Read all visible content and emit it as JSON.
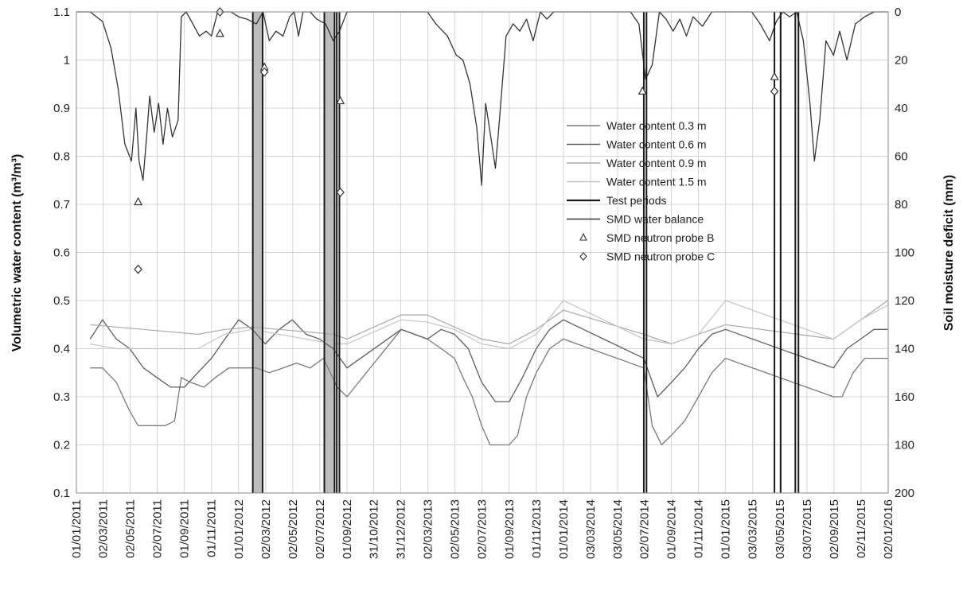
{
  "chart_data": {
    "type": "line",
    "title": "",
    "ylabel": "Volumetric water content (m³/m³)",
    "y2label": "Soil moisture deficit (mm)",
    "xlabel": "",
    "ylim": [
      0.1,
      1.1
    ],
    "y2lim": [
      0,
      200
    ],
    "y2_inverted": true,
    "yticks": [
      "0.1",
      "0.2",
      "0.3",
      "0.4",
      "0.5",
      "0.6",
      "0.7",
      "0.8",
      "0.9",
      "1",
      "1.1"
    ],
    "y2ticks": [
      "0",
      "20",
      "40",
      "60",
      "80",
      "100",
      "120",
      "140",
      "160",
      "180",
      "200"
    ],
    "x_ticks": [
      "01/01/2011",
      "02/03/2011",
      "02/05/2011",
      "02/07/2011",
      "01/09/2011",
      "01/11/2011",
      "01/01/2012",
      "02/03/2012",
      "02/05/2012",
      "02/07/2012",
      "01/09/2012",
      "31/10/2012",
      "31/12/2012",
      "02/03/2013",
      "02/05/2013",
      "02/07/2013",
      "01/09/2013",
      "01/11/2013",
      "01/01/2014",
      "03/03/2014",
      "03/05/2014",
      "02/07/2014",
      "01/09/2014",
      "01/11/2014",
      "01/01/2015",
      "03/03/2015",
      "03/05/2015",
      "03/07/2015",
      "02/09/2015",
      "02/11/2015",
      "02/01/2016"
    ],
    "grid": true,
    "legend_position": "center-right",
    "legend": [
      "Water content 0.3 m",
      "Water content 0.6 m",
      "Water content 0.9 m",
      "Water content 1.5 m",
      "Test periods",
      "SMD water balance",
      "SMD neutron probe B",
      "SMD neutron probe C"
    ],
    "colors": {
      "wc03": "#7a7a7a",
      "wc06": "#5e5e5e",
      "wc09": "#a8a8a8",
      "wc15": "#c4c4c4",
      "test": "#1a1a1a",
      "smd": "#333333",
      "probe": "#333333",
      "shade": "#bdbdbd"
    },
    "test_periods": [
      {
        "start": "2012-02-02",
        "end": "2012-02-24",
        "shaded": true
      },
      {
        "start": "2012-07-12",
        "end": "2012-08-04",
        "shaded": true
      },
      {
        "start": "2012-08-09",
        "end": "2012-08-15",
        "shaded": false
      },
      {
        "start": "2014-07-01",
        "end": "2014-07-07",
        "shaded": false
      },
      {
        "start": "2015-04-21",
        "end": "2015-05-05",
        "shaded": false
      },
      {
        "start": "2015-06-07",
        "end": "2015-06-14",
        "shaded": false
      }
    ],
    "series": [
      {
        "name": "SMD water balance",
        "axis": "y2",
        "key": "smd",
        "x": [
          "2011-01-01",
          "2011-02-01",
          "2011-03-01",
          "2011-03-20",
          "2011-04-05",
          "2011-04-20",
          "2011-05-05",
          "2011-05-15",
          "2011-05-22",
          "2011-05-31",
          "2011-06-08",
          "2011-06-15",
          "2011-06-25",
          "2011-07-05",
          "2011-07-15",
          "2011-07-25",
          "2011-08-05",
          "2011-08-18",
          "2011-08-25",
          "2011-09-05",
          "2011-09-20",
          "2011-10-05",
          "2011-10-20",
          "2011-11-01",
          "2011-11-15",
          "2011-12-01",
          "2011-12-15",
          "2012-01-01",
          "2012-01-20",
          "2012-02-10",
          "2012-02-25",
          "2012-03-10",
          "2012-03-25",
          "2012-04-10",
          "2012-04-25",
          "2012-05-05",
          "2012-05-15",
          "2012-05-25",
          "2012-06-10",
          "2012-06-25",
          "2012-07-15",
          "2012-08-01",
          "2012-08-15",
          "2012-09-01",
          "2012-10-01",
          "2013-01-01",
          "2013-03-01",
          "2013-03-20",
          "2013-04-15",
          "2013-05-05",
          "2013-05-20",
          "2013-06-05",
          "2013-06-20",
          "2013-07-01",
          "2013-07-10",
          "2013-07-20",
          "2013-08-01",
          "2013-08-10",
          "2013-08-25",
          "2013-09-10",
          "2013-09-25",
          "2013-10-10",
          "2013-10-25",
          "2013-11-10",
          "2013-11-25",
          "2013-12-10",
          "2014-01-01",
          "2014-03-01",
          "2014-05-01",
          "2014-06-01",
          "2014-06-20",
          "2014-07-05",
          "2014-07-20",
          "2014-08-05",
          "2014-08-20",
          "2014-09-05",
          "2014-09-20",
          "2014-10-05",
          "2014-10-20",
          "2014-11-10",
          "2014-12-01",
          "2015-01-01",
          "2015-02-01",
          "2015-03-01",
          "2015-03-20",
          "2015-04-10",
          "2015-04-25",
          "2015-05-10",
          "2015-05-25",
          "2015-06-10",
          "2015-06-25",
          "2015-07-10",
          "2015-07-20",
          "2015-08-01",
          "2015-08-15",
          "2015-09-01",
          "2015-09-15",
          "2015-10-01",
          "2015-10-20",
          "2015-11-10",
          "2015-12-01",
          "2016-01-01"
        ],
        "y": [
          0,
          0,
          4,
          15,
          32,
          55,
          62,
          40,
          62,
          70,
          52,
          35,
          50,
          38,
          55,
          40,
          52,
          45,
          2,
          0,
          5,
          10,
          8,
          10,
          0,
          0,
          0,
          2,
          3,
          5,
          0,
          12,
          8,
          10,
          2,
          0,
          10,
          0,
          0,
          3,
          5,
          12,
          8,
          0,
          0,
          0,
          0,
          5,
          10,
          18,
          20,
          30,
          48,
          72,
          38,
          50,
          65,
          45,
          10,
          5,
          8,
          3,
          12,
          0,
          3,
          0,
          0,
          0,
          0,
          0,
          5,
          28,
          22,
          0,
          3,
          8,
          3,
          10,
          2,
          6,
          0,
          0,
          0,
          0,
          5,
          12,
          4,
          0,
          2,
          0,
          12,
          38,
          62,
          45,
          12,
          18,
          8,
          20,
          5,
          2,
          0,
          0
        ]
      },
      {
        "name": "Water content 0.3 m",
        "axis": "y1",
        "key": "wc03",
        "x": [
          "2011-02-01",
          "2011-03-01",
          "2011-04-01",
          "2011-05-01",
          "2011-05-20",
          "2011-06-10",
          "2011-07-01",
          "2011-07-20",
          "2011-08-10",
          "2011-08-25",
          "2011-09-15",
          "2011-10-15",
          "2011-11-10",
          "2011-12-10",
          "2012-01-10",
          "2012-02-10",
          "2012-03-10",
          "2012-04-10",
          "2012-05-10",
          "2012-06-10",
          "2012-07-10",
          "2012-08-10",
          "2012-09-01",
          "2013-01-01",
          "2013-03-01",
          "2013-04-01",
          "2013-05-01",
          "2013-05-20",
          "2013-06-10",
          "2013-07-01",
          "2013-07-20",
          "2013-08-10",
          "2013-09-01",
          "2013-09-20",
          "2013-10-10",
          "2013-11-01",
          "2013-12-01",
          "2014-01-01",
          "2014-07-01",
          "2014-07-20",
          "2014-08-10",
          "2014-09-01",
          "2014-10-01",
          "2014-11-01",
          "2014-12-01",
          "2015-01-01",
          "2015-09-01",
          "2015-09-20",
          "2015-10-15",
          "2015-11-10",
          "2015-12-10",
          "2016-01-01"
        ],
        "y": [
          0.36,
          0.36,
          0.33,
          0.27,
          0.24,
          0.24,
          0.24,
          0.24,
          0.25,
          0.34,
          0.33,
          0.32,
          0.34,
          0.36,
          0.36,
          0.36,
          0.35,
          0.36,
          0.37,
          0.36,
          0.38,
          0.32,
          0.3,
          0.44,
          0.42,
          0.4,
          0.38,
          0.34,
          0.3,
          0.24,
          0.2,
          0.2,
          0.2,
          0.22,
          0.3,
          0.35,
          0.4,
          0.42,
          0.36,
          0.24,
          0.2,
          0.22,
          0.25,
          0.3,
          0.35,
          0.38,
          0.3,
          0.3,
          0.35,
          0.38,
          0.38,
          0.38
        ]
      },
      {
        "name": "Water content 0.6 m",
        "axis": "y1",
        "key": "wc06",
        "x": [
          "2011-02-01",
          "2011-03-01",
          "2011-04-01",
          "2011-05-01",
          "2011-06-01",
          "2011-07-01",
          "2011-08-01",
          "2011-09-01",
          "2011-10-01",
          "2011-11-01",
          "2011-12-01",
          "2012-01-01",
          "2012-02-01",
          "2012-03-01",
          "2012-04-01",
          "2012-05-01",
          "2012-06-01",
          "2012-07-01",
          "2012-08-01",
          "2012-09-01",
          "2013-01-01",
          "2013-03-01",
          "2013-04-01",
          "2013-05-01",
          "2013-06-01",
          "2013-07-01",
          "2013-08-01",
          "2013-09-01",
          "2013-10-01",
          "2013-11-01",
          "2013-12-01",
          "2014-01-01",
          "2014-07-01",
          "2014-08-01",
          "2014-09-01",
          "2014-10-01",
          "2014-11-01",
          "2014-12-01",
          "2015-01-01",
          "2015-09-01",
          "2015-10-01",
          "2015-11-01",
          "2015-12-01",
          "2016-01-01"
        ],
        "y": [
          0.42,
          0.46,
          0.42,
          0.4,
          0.36,
          0.34,
          0.32,
          0.32,
          0.35,
          0.38,
          0.42,
          0.46,
          0.44,
          0.41,
          0.44,
          0.46,
          0.43,
          0.42,
          0.4,
          0.36,
          0.44,
          0.42,
          0.44,
          0.43,
          0.4,
          0.33,
          0.29,
          0.29,
          0.34,
          0.4,
          0.44,
          0.46,
          0.38,
          0.3,
          0.33,
          0.36,
          0.4,
          0.43,
          0.44,
          0.36,
          0.4,
          0.42,
          0.44,
          0.44
        ]
      },
      {
        "name": "Water content 0.9 m",
        "axis": "y1",
        "key": "wc09",
        "x": [
          "2011-02-01",
          "2011-04-01",
          "2011-06-01",
          "2011-08-01",
          "2011-10-01",
          "2011-12-01",
          "2012-02-01",
          "2012-04-01",
          "2012-06-01",
          "2012-08-01",
          "2012-09-01",
          "2013-01-01",
          "2013-03-01",
          "2013-05-01",
          "2013-07-01",
          "2013-09-01",
          "2013-11-01",
          "2014-01-01",
          "2014-07-01",
          "2014-09-01",
          "2014-11-01",
          "2015-01-01",
          "2015-09-01",
          "2015-11-01",
          "2016-01-01"
        ],
        "y": [
          0.45,
          0.445,
          0.44,
          0.435,
          0.43,
          0.44,
          0.445,
          0.44,
          0.435,
          0.43,
          0.42,
          0.47,
          0.47,
          0.445,
          0.42,
          0.41,
          0.44,
          0.48,
          0.43,
          0.41,
          0.43,
          0.45,
          0.42,
          0.46,
          0.5
        ]
      },
      {
        "name": "Water content 1.5 m",
        "axis": "y1",
        "key": "wc15",
        "x": [
          "2011-02-01",
          "2011-04-01",
          "2011-06-01",
          "2011-08-01",
          "2011-10-01",
          "2011-12-01",
          "2012-02-01",
          "2012-04-01",
          "2012-06-01",
          "2012-08-01",
          "2012-09-01",
          "2013-01-01",
          "2013-03-01",
          "2013-05-01",
          "2013-07-01",
          "2013-09-01",
          "2013-11-01",
          "2014-01-01",
          "2014-07-01",
          "2014-09-01",
          "2014-11-01",
          "2015-01-01",
          "2015-09-01",
          "2015-11-01",
          "2016-01-01"
        ],
        "y": [
          0.41,
          0.4,
          0.4,
          0.4,
          0.4,
          0.43,
          0.44,
          0.43,
          0.42,
          0.41,
          0.41,
          0.46,
          0.455,
          0.44,
          0.41,
          0.4,
          0.43,
          0.5,
          0.42,
          0.41,
          0.43,
          0.5,
          0.42,
          0.46,
          0.49
        ]
      }
    ],
    "points": [
      {
        "name": "SMD neutron probe B",
        "marker": "triangle",
        "x": [
          "2011-05-20",
          "2011-11-20",
          "2012-02-28",
          "2012-08-17",
          "2014-06-28",
          "2015-04-21"
        ],
        "y2": [
          79,
          9,
          23,
          37,
          33,
          27
        ]
      },
      {
        "name": "SMD neutron probe C",
        "marker": "diamond",
        "x": [
          "2011-05-20",
          "2011-11-20",
          "2012-02-28",
          "2012-08-17",
          "2015-04-21"
        ],
        "y2": [
          107,
          0,
          25,
          75,
          33
        ]
      }
    ]
  }
}
